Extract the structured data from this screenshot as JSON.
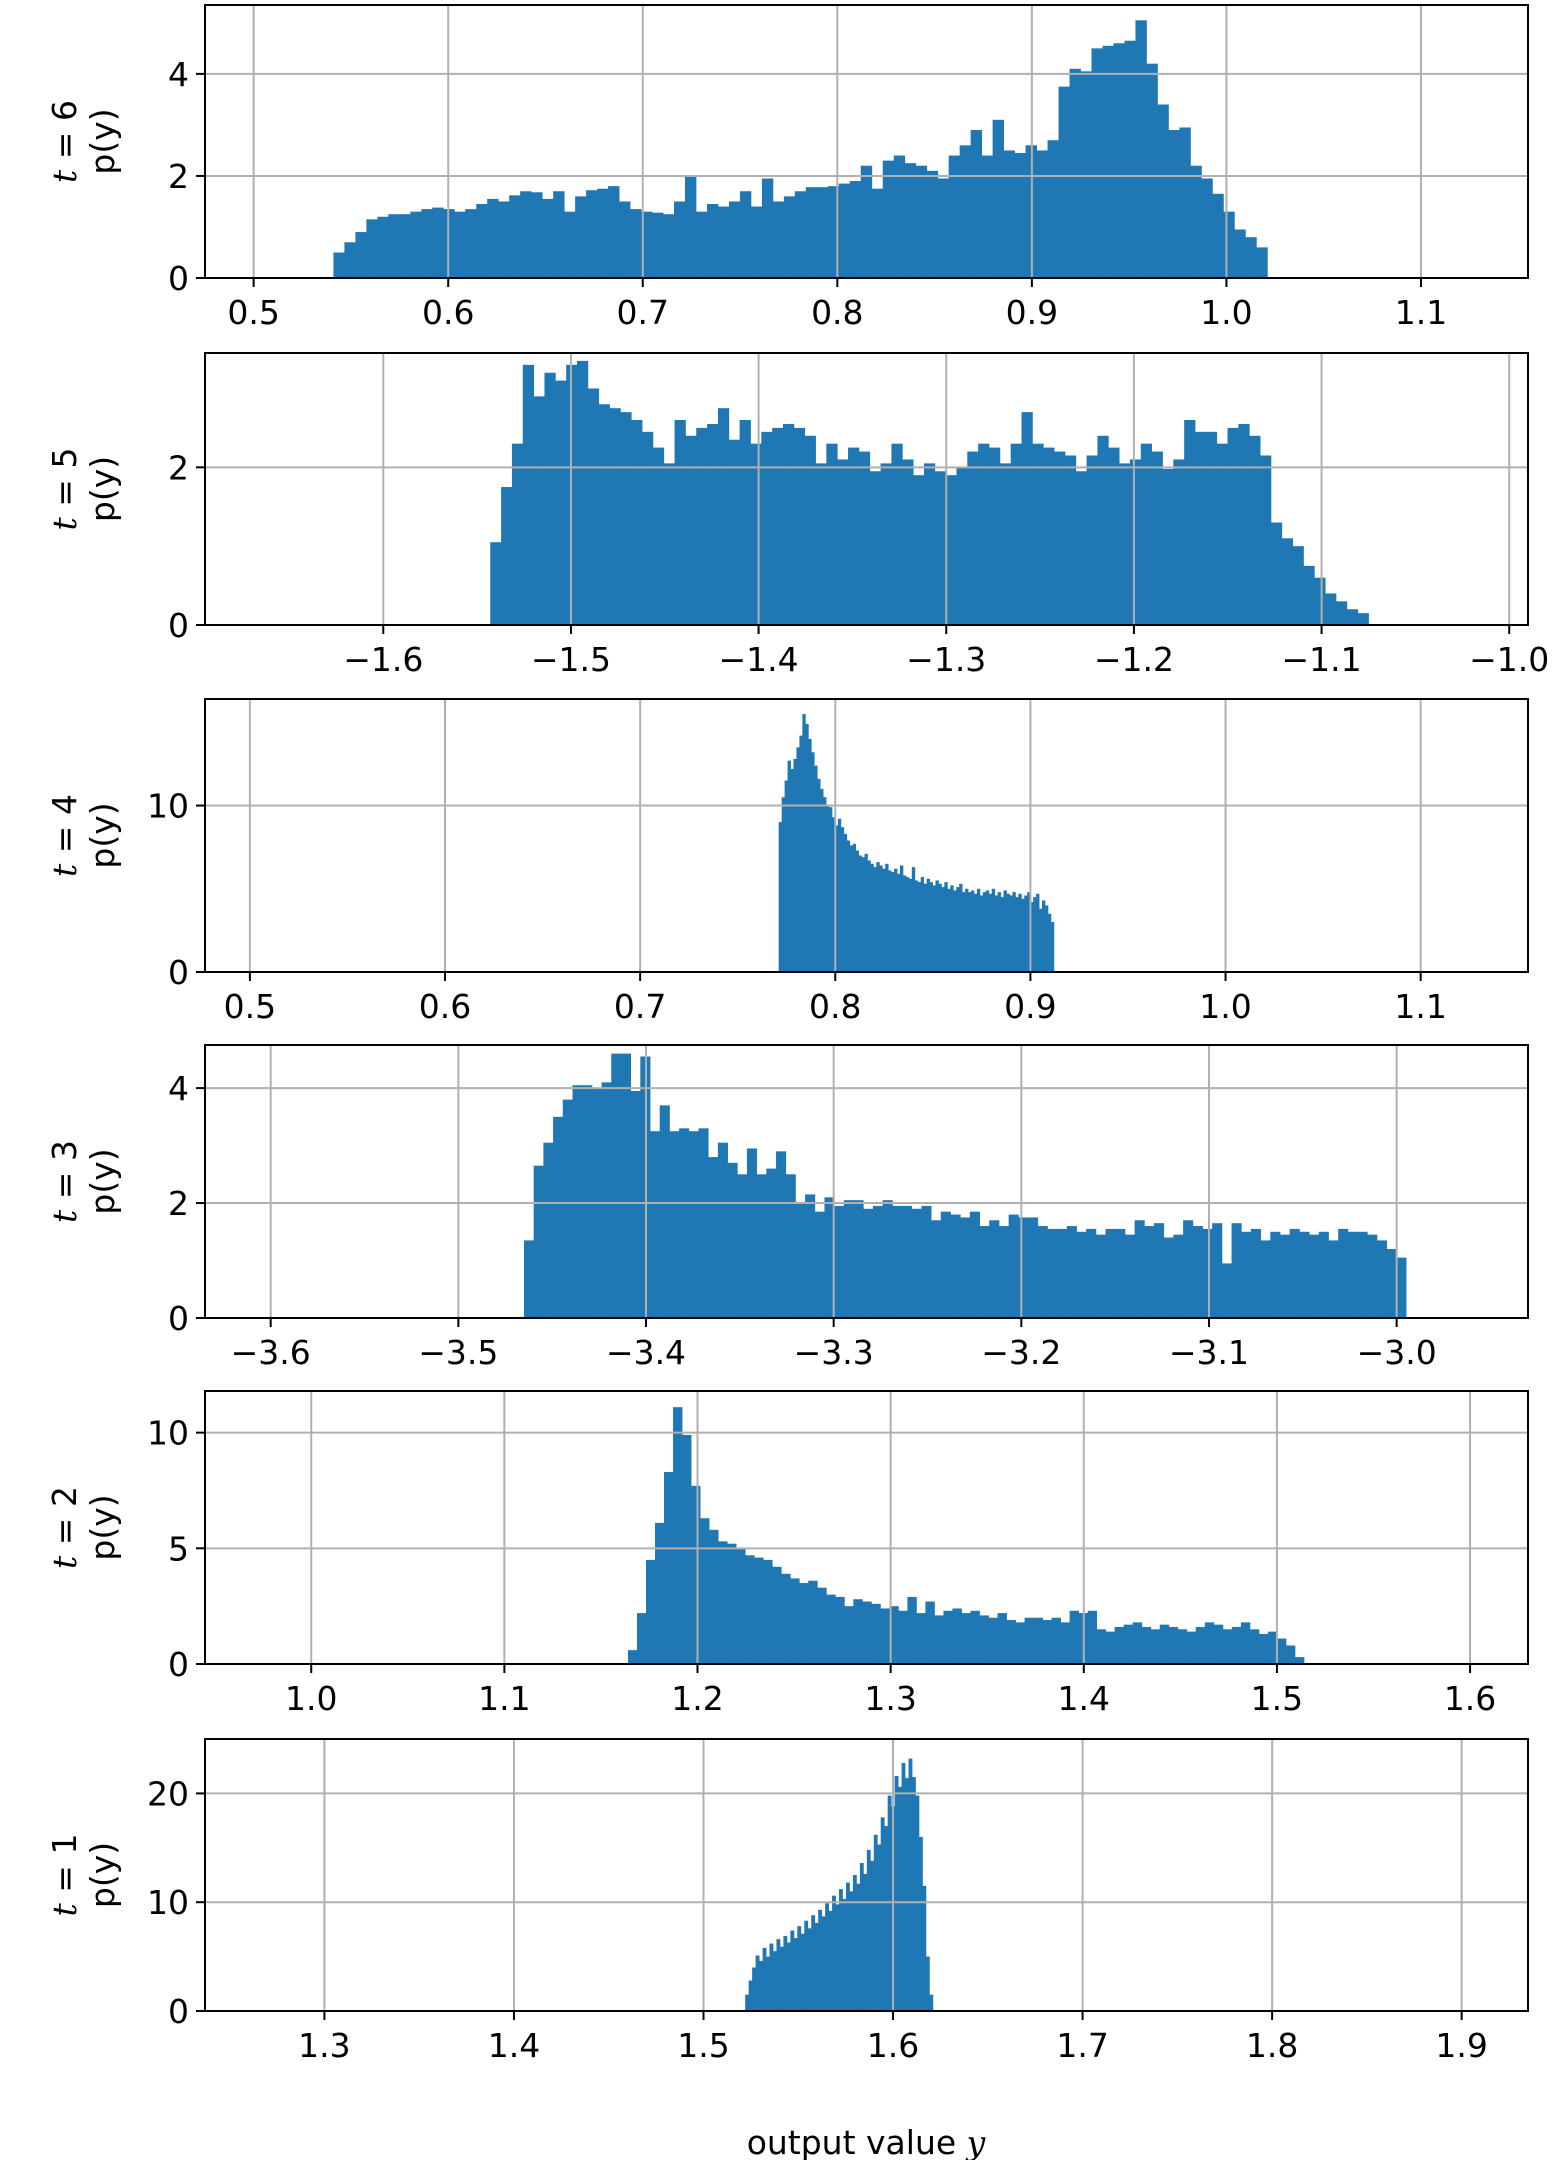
{
  "figure": {
    "xlabel_text": "output value ",
    "xlabel_var": "y",
    "bar_color": "#1f77b4",
    "grid_color": "#b0b0b0"
  },
  "chart_data": [
    {
      "type": "bar",
      "panel_label_var": "t",
      "panel_label_eq": " = 6",
      "ylabel": "p(y)",
      "xlim": [
        0.475,
        1.155
      ],
      "ylim": [
        0,
        5.35
      ],
      "xticks": [
        0.5,
        0.6,
        0.7,
        0.8,
        0.9,
        1.0,
        1.1
      ],
      "xtick_labels": [
        "0.5",
        "0.6",
        "0.7",
        "0.8",
        "0.9",
        "1.0",
        "1.1"
      ],
      "yticks": [
        0,
        2,
        4
      ],
      "ytick_labels": [
        "0",
        "2",
        "4"
      ],
      "grid": true,
      "bin_start": 0.541,
      "bin_end": 1.021,
      "values": [
        0.5,
        0.7,
        0.9,
        1.15,
        1.2,
        1.25,
        1.25,
        1.3,
        1.35,
        1.38,
        1.35,
        1.3,
        1.35,
        1.45,
        1.55,
        1.5,
        1.62,
        1.7,
        1.68,
        1.55,
        1.7,
        1.3,
        1.6,
        1.72,
        1.75,
        1.8,
        1.5,
        1.35,
        1.3,
        1.28,
        1.25,
        1.5,
        1.98,
        1.3,
        1.45,
        1.4,
        1.5,
        1.7,
        1.4,
        1.95,
        1.5,
        1.6,
        1.7,
        1.78,
        1.78,
        1.8,
        1.85,
        1.9,
        2.2,
        1.75,
        2.3,
        2.4,
        2.25,
        2.2,
        2.1,
        1.95,
        2.4,
        2.6,
        2.9,
        2.4,
        3.1,
        2.5,
        2.45,
        2.6,
        2.5,
        2.7,
        3.75,
        4.1,
        4.05,
        4.5,
        4.55,
        4.6,
        4.65,
        5.05,
        4.2,
        3.4,
        2.9,
        2.95,
        2.2,
        1.95,
        1.65,
        1.3,
        0.95,
        0.8,
        0.6
      ]
    },
    {
      "type": "bar",
      "panel_label_var": "t",
      "panel_label_eq": " = 5",
      "ylabel": "p(y)",
      "xlim": [
        -1.695,
        -0.99
      ],
      "ylim": [
        0,
        3.45
      ],
      "xticks": [
        -1.6,
        -1.5,
        -1.4,
        -1.3,
        -1.2,
        -1.1,
        -1.0
      ],
      "xtick_labels": [
        "−1.6",
        "−1.5",
        "−1.4",
        "−1.3",
        "−1.2",
        "−1.1",
        "−1.0"
      ],
      "yticks": [
        0,
        2
      ],
      "ytick_labels": [
        "0",
        "2"
      ],
      "grid": true,
      "bin_start": -1.543,
      "bin_end": -1.075,
      "values": [
        1.05,
        1.75,
        2.3,
        3.3,
        2.9,
        3.2,
        3.1,
        3.3,
        3.35,
        3.0,
        2.8,
        2.75,
        2.7,
        2.6,
        2.45,
        2.25,
        2.05,
        2.6,
        2.4,
        2.5,
        2.55,
        2.75,
        2.35,
        2.6,
        2.3,
        2.45,
        2.5,
        2.55,
        2.5,
        2.4,
        2.05,
        2.3,
        2.1,
        2.25,
        2.2,
        1.95,
        2.05,
        2.3,
        2.1,
        1.9,
        2.05,
        1.95,
        1.9,
        2.0,
        2.2,
        2.3,
        2.25,
        2.05,
        2.3,
        2.7,
        2.3,
        2.25,
        2.2,
        2.15,
        1.95,
        2.15,
        2.4,
        2.25,
        2.05,
        2.1,
        2.3,
        2.2,
        1.98,
        2.1,
        2.6,
        2.45,
        2.45,
        2.3,
        2.5,
        2.55,
        2.4,
        2.15,
        1.3,
        1.1,
        1.0,
        0.75,
        0.6,
        0.4,
        0.3,
        0.2,
        0.15
      ]
    },
    {
      "type": "bar",
      "panel_label_var": "t",
      "panel_label_eq": " = 4",
      "ylabel": "p(y)",
      "xlim": [
        0.477,
        1.155
      ],
      "ylim": [
        0,
        16.4
      ],
      "xticks": [
        0.5,
        0.6,
        0.7,
        0.8,
        0.9,
        1.0,
        1.1
      ],
      "xtick_labels": [
        "0.5",
        "0.6",
        "0.7",
        "0.8",
        "0.9",
        "1.0",
        "1.1"
      ],
      "yticks": [
        0,
        10
      ],
      "ytick_labels": [
        "0",
        "10"
      ],
      "grid": true,
      "bin_start": 0.771,
      "bin_end": 0.912,
      "values": [
        9.0,
        10.5,
        11.5,
        12.7,
        12.2,
        12.8,
        13.5,
        14.2,
        15.5,
        14.9,
        14.0,
        13.2,
        12.4,
        11.6,
        11.0,
        10.5,
        10.0,
        9.9,
        9.3,
        8.8,
        9.2,
        8.7,
        8.3,
        7.9,
        7.6,
        7.7,
        7.3,
        7.0,
        6.9,
        7.1,
        6.7,
        6.5,
        6.3,
        6.6,
        6.4,
        6.2,
        6.5,
        6.1,
        6.0,
        6.2,
        5.9,
        6.4,
        5.8,
        5.7,
        5.6,
        6.3,
        5.5,
        5.4,
        5.7,
        5.3,
        5.6,
        5.4,
        5.2,
        5.5,
        5.3,
        5.1,
        5.4,
        5.0,
        5.2,
        4.9,
        5.1,
        5.3,
        4.8,
        5.0,
        4.8,
        4.9,
        4.7,
        5.0,
        4.6,
        4.8,
        4.9,
        4.7,
        5.0,
        4.6,
        4.8,
        4.5,
        4.9,
        4.7,
        4.6,
        4.8,
        4.5,
        4.7,
        4.4,
        4.6,
        4.8,
        4.2,
        4.5,
        4.7,
        3.8,
        4.3,
        4.0,
        3.5,
        3.0
      ]
    },
    {
      "type": "bar",
      "panel_label_var": "t",
      "panel_label_eq": " = 3",
      "ylabel": "p(y)",
      "xlim": [
        -3.635,
        -2.93
      ],
      "ylim": [
        0,
        4.75
      ],
      "xticks": [
        -3.6,
        -3.5,
        -3.4,
        -3.3,
        -3.2,
        -3.1,
        -3.0
      ],
      "xtick_labels": [
        "−3.6",
        "−3.5",
        "−3.4",
        "−3.3",
        "−3.2",
        "−3.1",
        "−3.0"
      ],
      "yticks": [
        0,
        2,
        4
      ],
      "ytick_labels": [
        "0",
        "2",
        "4"
      ],
      "grid": true,
      "bin_start": -3.465,
      "bin_end": -2.995,
      "values": [
        1.35,
        2.65,
        3.05,
        3.5,
        3.8,
        4.05,
        4.05,
        4.0,
        4.1,
        4.6,
        4.6,
        3.95,
        4.55,
        3.25,
        3.7,
        3.25,
        3.3,
        3.25,
        3.3,
        2.8,
        3.05,
        2.7,
        2.5,
        2.95,
        2.5,
        2.6,
        2.9,
        2.5,
        2.0,
        2.15,
        1.85,
        2.1,
        1.95,
        2.05,
        2.05,
        1.9,
        1.95,
        2.05,
        1.95,
        1.95,
        1.9,
        1.95,
        1.7,
        1.85,
        1.8,
        1.75,
        1.85,
        1.6,
        1.7,
        1.6,
        1.8,
        1.75,
        1.75,
        1.6,
        1.55,
        1.55,
        1.6,
        1.5,
        1.55,
        1.45,
        1.55,
        1.55,
        1.45,
        1.7,
        1.6,
        1.65,
        1.4,
        1.45,
        1.7,
        1.6,
        1.55,
        1.65,
        0.95,
        1.65,
        1.5,
        1.55,
        1.35,
        1.5,
        1.45,
        1.55,
        1.5,
        1.45,
        1.5,
        1.35,
        1.55,
        1.5,
        1.5,
        1.45,
        1.35,
        1.2,
        1.05
      ]
    },
    {
      "type": "bar",
      "panel_label_var": "t",
      "panel_label_eq": " = 2",
      "ylabel": "p(y)",
      "xlim": [
        0.945,
        1.63
      ],
      "ylim": [
        0,
        11.8
      ],
      "xticks": [
        1.0,
        1.1,
        1.2,
        1.3,
        1.4,
        1.5,
        1.6
      ],
      "xtick_labels": [
        "1.0",
        "1.1",
        "1.2",
        "1.3",
        "1.4",
        "1.5",
        "1.6"
      ],
      "yticks": [
        0,
        5,
        10
      ],
      "ytick_labels": [
        "0",
        "5",
        "10"
      ],
      "grid": true,
      "bin_start": 1.164,
      "bin_end": 1.514,
      "values": [
        0.6,
        2.2,
        4.5,
        6.1,
        8.3,
        11.1,
        9.9,
        7.7,
        6.3,
        5.8,
        5.3,
        5.2,
        5.0,
        4.7,
        4.6,
        4.5,
        4.2,
        3.9,
        3.7,
        3.5,
        3.6,
        3.3,
        3.0,
        2.9,
        2.5,
        2.8,
        2.7,
        2.6,
        2.4,
        2.5,
        2.3,
        2.9,
        2.2,
        2.7,
        2.1,
        2.3,
        2.4,
        2.2,
        2.3,
        2.1,
        2.0,
        2.2,
        1.9,
        1.8,
        2.0,
        2.0,
        1.9,
        2.0,
        1.8,
        2.3,
        2.2,
        2.3,
        1.5,
        1.4,
        1.6,
        1.7,
        1.8,
        1.6,
        1.5,
        1.7,
        1.6,
        1.5,
        1.4,
        1.6,
        1.8,
        1.7,
        1.5,
        1.6,
        1.8,
        1.5,
        1.3,
        1.4,
        1.1,
        0.8,
        0.3
      ]
    },
    {
      "type": "bar",
      "panel_label_var": "t",
      "panel_label_eq": " = 1",
      "ylabel": "p(y)",
      "xlim": [
        1.237,
        1.935
      ],
      "ylim": [
        0,
        25.0
      ],
      "xticks": [
        1.3,
        1.4,
        1.5,
        1.6,
        1.7,
        1.8,
        1.9
      ],
      "xtick_labels": [
        "1.3",
        "1.4",
        "1.5",
        "1.6",
        "1.7",
        "1.8",
        "1.9"
      ],
      "yticks": [
        0,
        10,
        20
      ],
      "ytick_labels": [
        "0",
        "10",
        "20"
      ],
      "grid": true,
      "bin_start": 1.522,
      "bin_end": 1.621,
      "values": [
        1.5,
        2.8,
        4.0,
        5.1,
        4.6,
        5.8,
        5.0,
        6.2,
        5.5,
        6.6,
        5.9,
        6.9,
        6.3,
        7.4,
        6.7,
        7.8,
        7.1,
        8.3,
        7.6,
        8.8,
        8.1,
        9.3,
        8.7,
        9.9,
        9.2,
        10.6,
        9.8,
        11.2,
        10.3,
        11.8,
        11.0,
        12.5,
        11.7,
        13.6,
        12.6,
        14.8,
        13.8,
        16.2,
        15.3,
        17.8,
        17.0,
        19.8,
        18.8,
        21.6,
        20.6,
        22.8,
        21.4,
        23.2,
        21.5,
        19.8,
        16.0,
        11.5,
        5.0,
        1.5
      ]
    }
  ]
}
